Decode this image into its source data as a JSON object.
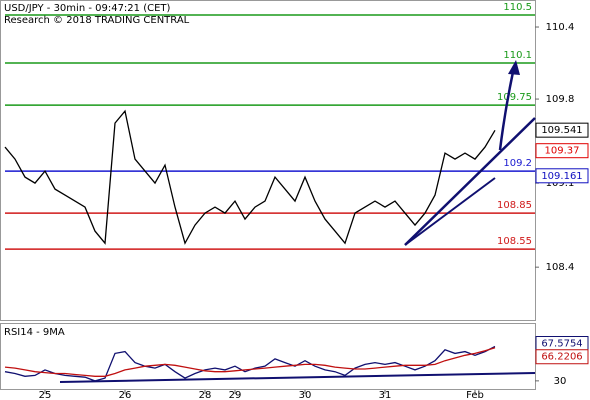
{
  "chart_data": [
    {
      "type": "line",
      "title": "USD/JPY - 30min - 09:47:21 (CET)",
      "subtitle": "Research © 2018 TRADING CENTRAL",
      "xlim": [
        -0.5,
        53
      ],
      "xticks": [
        {
          "value": 4,
          "label": "25"
        },
        {
          "value": 12,
          "label": "26"
        },
        {
          "value": 20,
          "label": "28"
        },
        {
          "value": 23,
          "label": "29"
        },
        {
          "value": 30,
          "label": "30"
        },
        {
          "value": 38,
          "label": "31"
        },
        {
          "value": 47,
          "label": "Feb"
        }
      ],
      "ylim": [
        107.96,
        110.625
      ],
      "yticks": [
        108.4,
        109.1,
        109.8,
        110.4
      ],
      "series": [
        {
          "color": "#000000",
          "values": [
            109.4,
            109.3,
            109.15,
            109.1,
            109.2,
            109.05,
            109.0,
            108.95,
            108.9,
            108.7,
            108.6,
            109.6,
            109.7,
            109.3,
            109.2,
            109.1,
            109.25,
            108.9,
            108.6,
            108.75,
            108.85,
            108.9,
            108.85,
            108.95,
            108.8,
            108.9,
            108.95,
            109.15,
            109.05,
            108.95,
            109.15,
            108.95,
            108.8,
            108.7,
            108.6,
            108.85,
            108.9,
            108.95,
            108.9,
            108.95,
            108.85,
            108.75,
            108.85,
            109.0,
            109.35,
            109.3,
            109.35,
            109.3,
            109.4,
            109.54
          ]
        }
      ],
      "levels": [
        {
          "value": 110.5,
          "color": "#1a9a1a"
        },
        {
          "value": 110.1,
          "color": "#1a9a1a"
        },
        {
          "value": 109.75,
          "color": "#1a9a1a"
        },
        {
          "value": 109.2,
          "color": "#1a1ad0"
        },
        {
          "value": 108.85,
          "color": "#d01a1a"
        },
        {
          "value": 108.55,
          "color": "#d01a1a"
        }
      ],
      "markers": [
        {
          "value": 109.541,
          "color": "#000000"
        },
        {
          "value": 109.37,
          "color": "#e00000"
        },
        {
          "value": 109.161,
          "color": "#1010c0"
        }
      ]
    },
    {
      "type": "line",
      "title": "RSI14 - 9MA",
      "xlim": [
        -0.5,
        53
      ],
      "ylim": [
        20,
        90
      ],
      "yticks": [
        30
      ],
      "series": [
        {
          "color": "#101070",
          "values": [
            40,
            38,
            35,
            36,
            42,
            38,
            36,
            35,
            34,
            30,
            33,
            60,
            62,
            50,
            46,
            44,
            48,
            40,
            33,
            38,
            42,
            44,
            42,
            46,
            40,
            44,
            46,
            54,
            50,
            46,
            52,
            46,
            42,
            40,
            36,
            44,
            48,
            50,
            48,
            50,
            46,
            42,
            46,
            52,
            64,
            60,
            62,
            58,
            62,
            67.5754
          ]
        },
        {
          "color": "#c01010",
          "values": [
            45,
            44,
            42,
            40,
            39,
            38,
            38,
            37,
            36,
            35,
            35,
            38,
            42,
            44,
            46,
            47,
            48,
            47,
            45,
            43,
            41,
            40,
            40,
            41,
            42,
            43,
            44,
            45,
            46,
            47,
            48,
            48,
            47,
            45,
            44,
            43,
            43,
            44,
            45,
            46,
            47,
            47,
            47,
            48,
            52,
            55,
            58,
            60,
            63,
            66.2206
          ]
        }
      ]
    }
  ]
}
